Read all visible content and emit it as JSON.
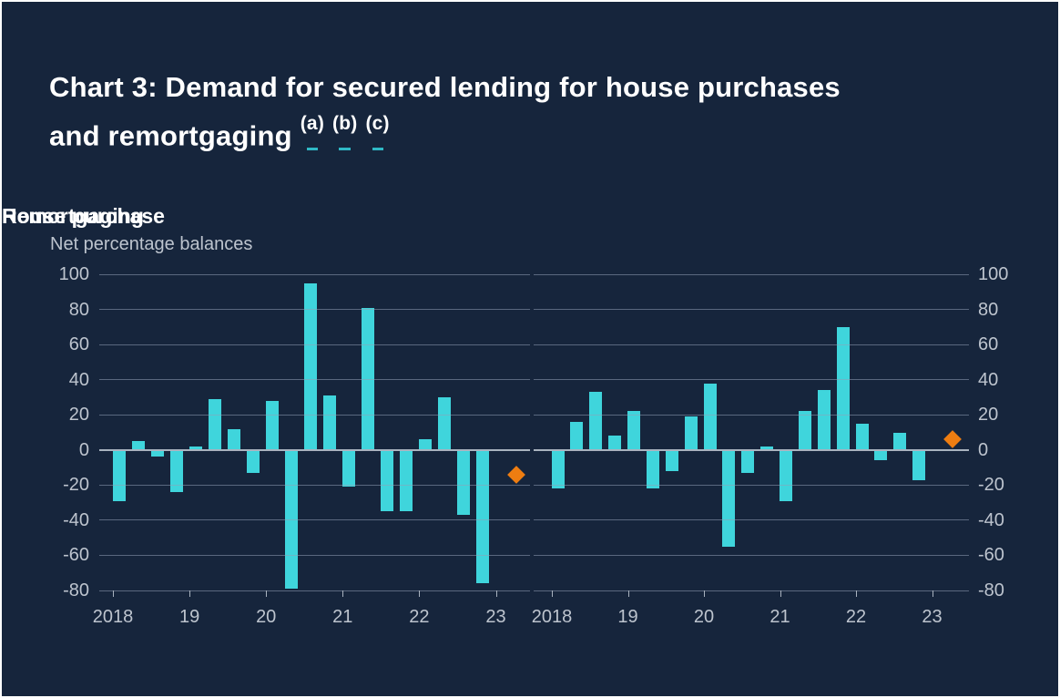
{
  "card": {
    "title": {
      "line1": "Chart 3: Demand for secured lending for house purchases",
      "line2": "and remortgaging",
      "footnotes": [
        {
          "pre": "(",
          "label": "a",
          "post": ")"
        },
        {
          "pre": "(",
          "label": "b",
          "post": ")"
        },
        {
          "pre": "(",
          "label": "c",
          "post": ")"
        }
      ]
    },
    "y_axis_unit": "Net percentage balances"
  },
  "colors": {
    "background": "#16253C",
    "bar": "#3FD5DC",
    "diamond": "#EE7D11",
    "gridline": "rgba(148,160,182,0.55)",
    "zero_line": "#A9B3BF",
    "axis_text": "#BDC4CE",
    "title_text": "#FFFFFF",
    "footnote_underline": "#2FB8C5"
  },
  "chart_data": [
    {
      "type": "bar",
      "title": "House purchase",
      "ylabel": "Net percentage balances",
      "categories": [
        "2018 Q1",
        "2018 Q2",
        "2018 Q3",
        "2018 Q4",
        "2019 Q1",
        "2019 Q2",
        "2019 Q3",
        "2019 Q4",
        "2020 Q1",
        "2020 Q2",
        "2020 Q3",
        "2020 Q4",
        "2021 Q1",
        "2021 Q2",
        "2021 Q3",
        "2021 Q4",
        "2022 Q1",
        "2022 Q2",
        "2022 Q3",
        "2022 Q4"
      ],
      "values": [
        -29,
        5,
        -4,
        -24,
        2,
        29,
        12,
        -13,
        28,
        -79,
        95,
        31,
        -21,
        81,
        -35,
        -35,
        6,
        30,
        -37,
        -76
      ],
      "x_tick_labels": [
        "2018",
        "19",
        "20",
        "21",
        "22",
        "23"
      ],
      "y_ticks": [
        100,
        80,
        60,
        40,
        20,
        0,
        -20,
        -40,
        -60,
        -80
      ],
      "ylim": [
        -80,
        100
      ],
      "grid": true,
      "legend": "none",
      "expectation_diamond_value": -14
    },
    {
      "type": "bar",
      "title": "Remortgaging",
      "ylabel": "Net percentage balances",
      "categories": [
        "2018 Q1",
        "2018 Q2",
        "2018 Q3",
        "2018 Q4",
        "2019 Q1",
        "2019 Q2",
        "2019 Q3",
        "2019 Q4",
        "2020 Q1",
        "2020 Q2",
        "2020 Q3",
        "2020 Q4",
        "2021 Q1",
        "2021 Q2",
        "2021 Q3",
        "2021 Q4",
        "2022 Q1",
        "2022 Q2",
        "2022 Q3",
        "2022 Q4"
      ],
      "values": [
        -22,
        16,
        33,
        8,
        22,
        -22,
        -12,
        19,
        38,
        -55,
        -13,
        2,
        -29,
        22,
        34,
        70,
        15,
        -6,
        10,
        -17
      ],
      "x_tick_labels": [
        "2018",
        "19",
        "20",
        "21",
        "22",
        "23"
      ],
      "y_ticks": [
        100,
        80,
        60,
        40,
        20,
        0,
        -20,
        -40,
        -60,
        -80
      ],
      "ylim": [
        -80,
        100
      ],
      "grid": true,
      "legend": "none",
      "expectation_diamond_value": 6
    }
  ]
}
